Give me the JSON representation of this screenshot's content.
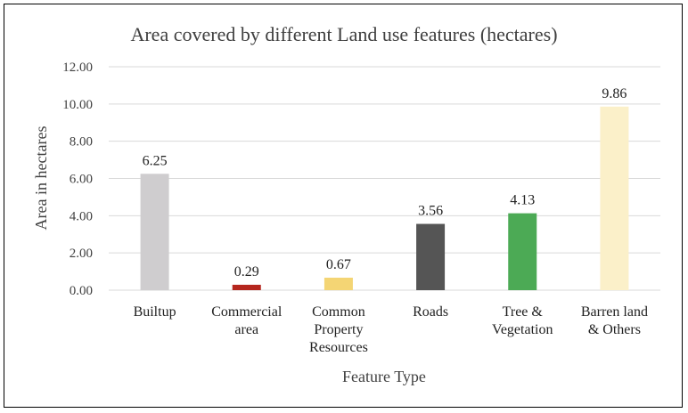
{
  "chart_data": {
    "type": "bar",
    "title": "Area covered by different Land use features (hectares)",
    "xlabel": "Feature Type",
    "ylabel": "Area in hectares",
    "ylim": [
      0,
      12
    ],
    "yticks": [
      "0.00",
      "2.00",
      "4.00",
      "6.00",
      "8.00",
      "10.00",
      "12.00"
    ],
    "grid": true,
    "categories": [
      [
        "Builtup"
      ],
      [
        "Commercial",
        "area"
      ],
      [
        "Common",
        "Property",
        "Resources"
      ],
      [
        "Roads"
      ],
      [
        "Tree &",
        "Vegetation"
      ],
      [
        "Barren land",
        "& Others"
      ]
    ],
    "values": [
      6.25,
      0.29,
      0.67,
      3.56,
      4.13,
      9.86
    ],
    "value_labels": [
      "6.25",
      "0.29",
      "0.67",
      "3.56",
      "4.13",
      "9.86"
    ],
    "colors": [
      "#cfcdcf",
      "#b5261e",
      "#f4d574",
      "#555555",
      "#4caa55",
      "#fbf0c9"
    ]
  }
}
